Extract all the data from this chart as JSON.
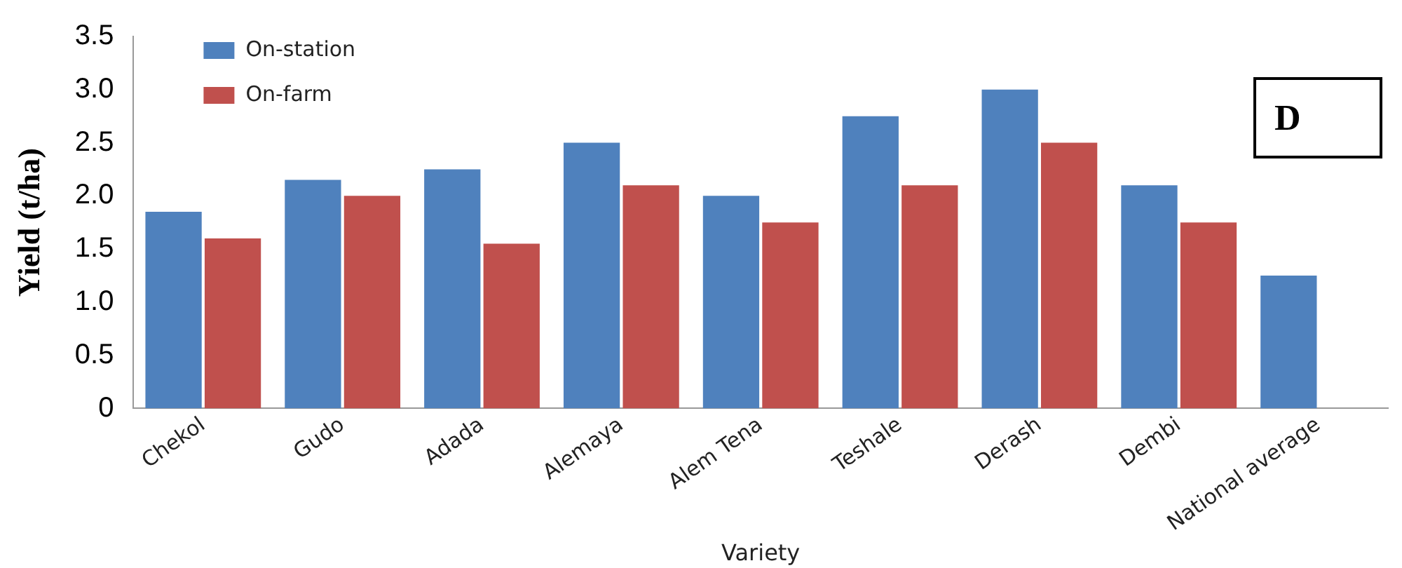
{
  "chart_data": {
    "type": "bar",
    "xlabel": "Variety",
    "ylabel": "Yield (t/ha)",
    "categories": [
      "Chekol",
      "Gudo",
      "Adada",
      "Alemaya",
      "Alem Tena",
      "Teshale",
      "Derash",
      "Dembi",
      "National average"
    ],
    "series": [
      {
        "name": "On-station",
        "color": "#4f81bd",
        "values": [
          1.85,
          2.15,
          2.25,
          2.5,
          2.0,
          2.75,
          3.0,
          2.1,
          1.25
        ]
      },
      {
        "name": "On-farm",
        "color": "#c0504d",
        "values": [
          1.6,
          2.0,
          1.55,
          2.1,
          1.75,
          2.1,
          2.5,
          1.75,
          null
        ]
      }
    ],
    "ylim": [
      0,
      3.5
    ],
    "yticks": [
      0,
      0.5,
      {
        "value": 1,
        "label": "1.0"
      },
      1.5,
      {
        "value": 2,
        "label": "2.0"
      },
      2.5,
      {
        "value": 3,
        "label": "3.0"
      },
      3.5
    ],
    "grid": false,
    "legend": "top left",
    "annotations": [
      "D"
    ]
  }
}
